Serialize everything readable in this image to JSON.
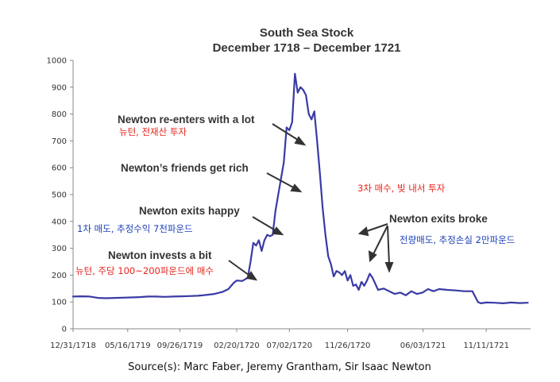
{
  "chart_data": {
    "type": "line",
    "title": "South Sea Stock",
    "subtitle": "December 1718 – December 1721",
    "xlabel": "",
    "ylabel": "",
    "ylim": [
      0,
      1000
    ],
    "y_ticks": [
      0,
      100,
      200,
      300,
      400,
      500,
      600,
      700,
      800,
      900,
      1000
    ],
    "x_ticks": [
      "12/31/1718",
      "05/16/1719",
      "09/26/1719",
      "02/20/1720",
      "07/02/1720",
      "11/26/1720",
      "06/03/1721",
      "11/11/1721"
    ],
    "x_unit": "week",
    "x_tick_positions": [
      0,
      19.7,
      38.5,
      59,
      78,
      99,
      126.2,
      149
    ],
    "x_range": [
      0,
      165
    ],
    "grid": false,
    "series": [
      {
        "color": "#3a3aa6",
        "x": [
          0,
          3,
          6,
          9,
          12,
          15,
          18,
          21,
          24,
          27,
          30,
          33,
          36,
          39,
          42,
          45,
          48,
          51,
          54,
          56,
          58,
          59,
          61,
          63,
          64,
          65,
          66,
          67,
          68,
          69,
          70,
          71,
          72,
          73,
          74,
          75,
          76,
          77,
          78,
          79,
          80,
          81,
          82,
          83,
          84,
          85,
          86,
          87,
          88,
          89,
          90,
          91,
          92,
          93,
          94,
          95,
          96,
          97,
          98,
          99,
          100,
          101,
          102,
          103,
          104,
          105,
          106,
          107,
          108,
          110,
          112,
          114,
          116,
          118,
          120,
          122,
          124,
          126,
          128,
          130,
          132,
          135,
          138,
          141,
          144,
          146,
          147,
          149,
          152,
          155,
          158,
          161,
          164
        ],
        "y": [
          120,
          121,
          120,
          115,
          114,
          115,
          116,
          117,
          118,
          120,
          120,
          119,
          120,
          121,
          122,
          123,
          126,
          130,
          138,
          148,
          172,
          180,
          178,
          190,
          250,
          320,
          310,
          330,
          290,
          330,
          350,
          345,
          350,
          440,
          500,
          560,
          620,
          750,
          740,
          770,
          950,
          880,
          900,
          890,
          870,
          800,
          780,
          810,
          700,
          580,
          450,
          350,
          270,
          240,
          195,
          215,
          210,
          200,
          215,
          180,
          200,
          160,
          165,
          145,
          175,
          160,
          180,
          205,
          190,
          145,
          150,
          140,
          130,
          135,
          125,
          140,
          130,
          135,
          148,
          140,
          148,
          145,
          143,
          140,
          140,
          100,
          95,
          98,
          97,
          95,
          98,
          96,
          97
        ]
      }
    ],
    "annotations": [
      {
        "text": "Newton re-enters with a lot",
        "kind": "en"
      },
      {
        "text": "뉴턴, 전재산 투자",
        "kind": "red"
      },
      {
        "text": "Newton’s friends get rich",
        "kind": "en"
      },
      {
        "text": "Newton exits happy",
        "kind": "en"
      },
      {
        "text": "1차 매도, 추정수익 7천파운드",
        "kind": "blue"
      },
      {
        "text": "Newton invests a bit",
        "kind": "en"
      },
      {
        "text": "뉴턴, 주당 100~200파운드에 매수",
        "kind": "red"
      },
      {
        "text": "3차 매수, 빚 내서 투자",
        "kind": "red"
      },
      {
        "text": "Newton exits broke",
        "kind": "en"
      },
      {
        "text": "전량매도, 추정손실 2만파운드",
        "kind": "blue"
      }
    ],
    "source": "Source(s): Marc Faber, Jeremy Grantham, Sir Isaac Newton"
  }
}
